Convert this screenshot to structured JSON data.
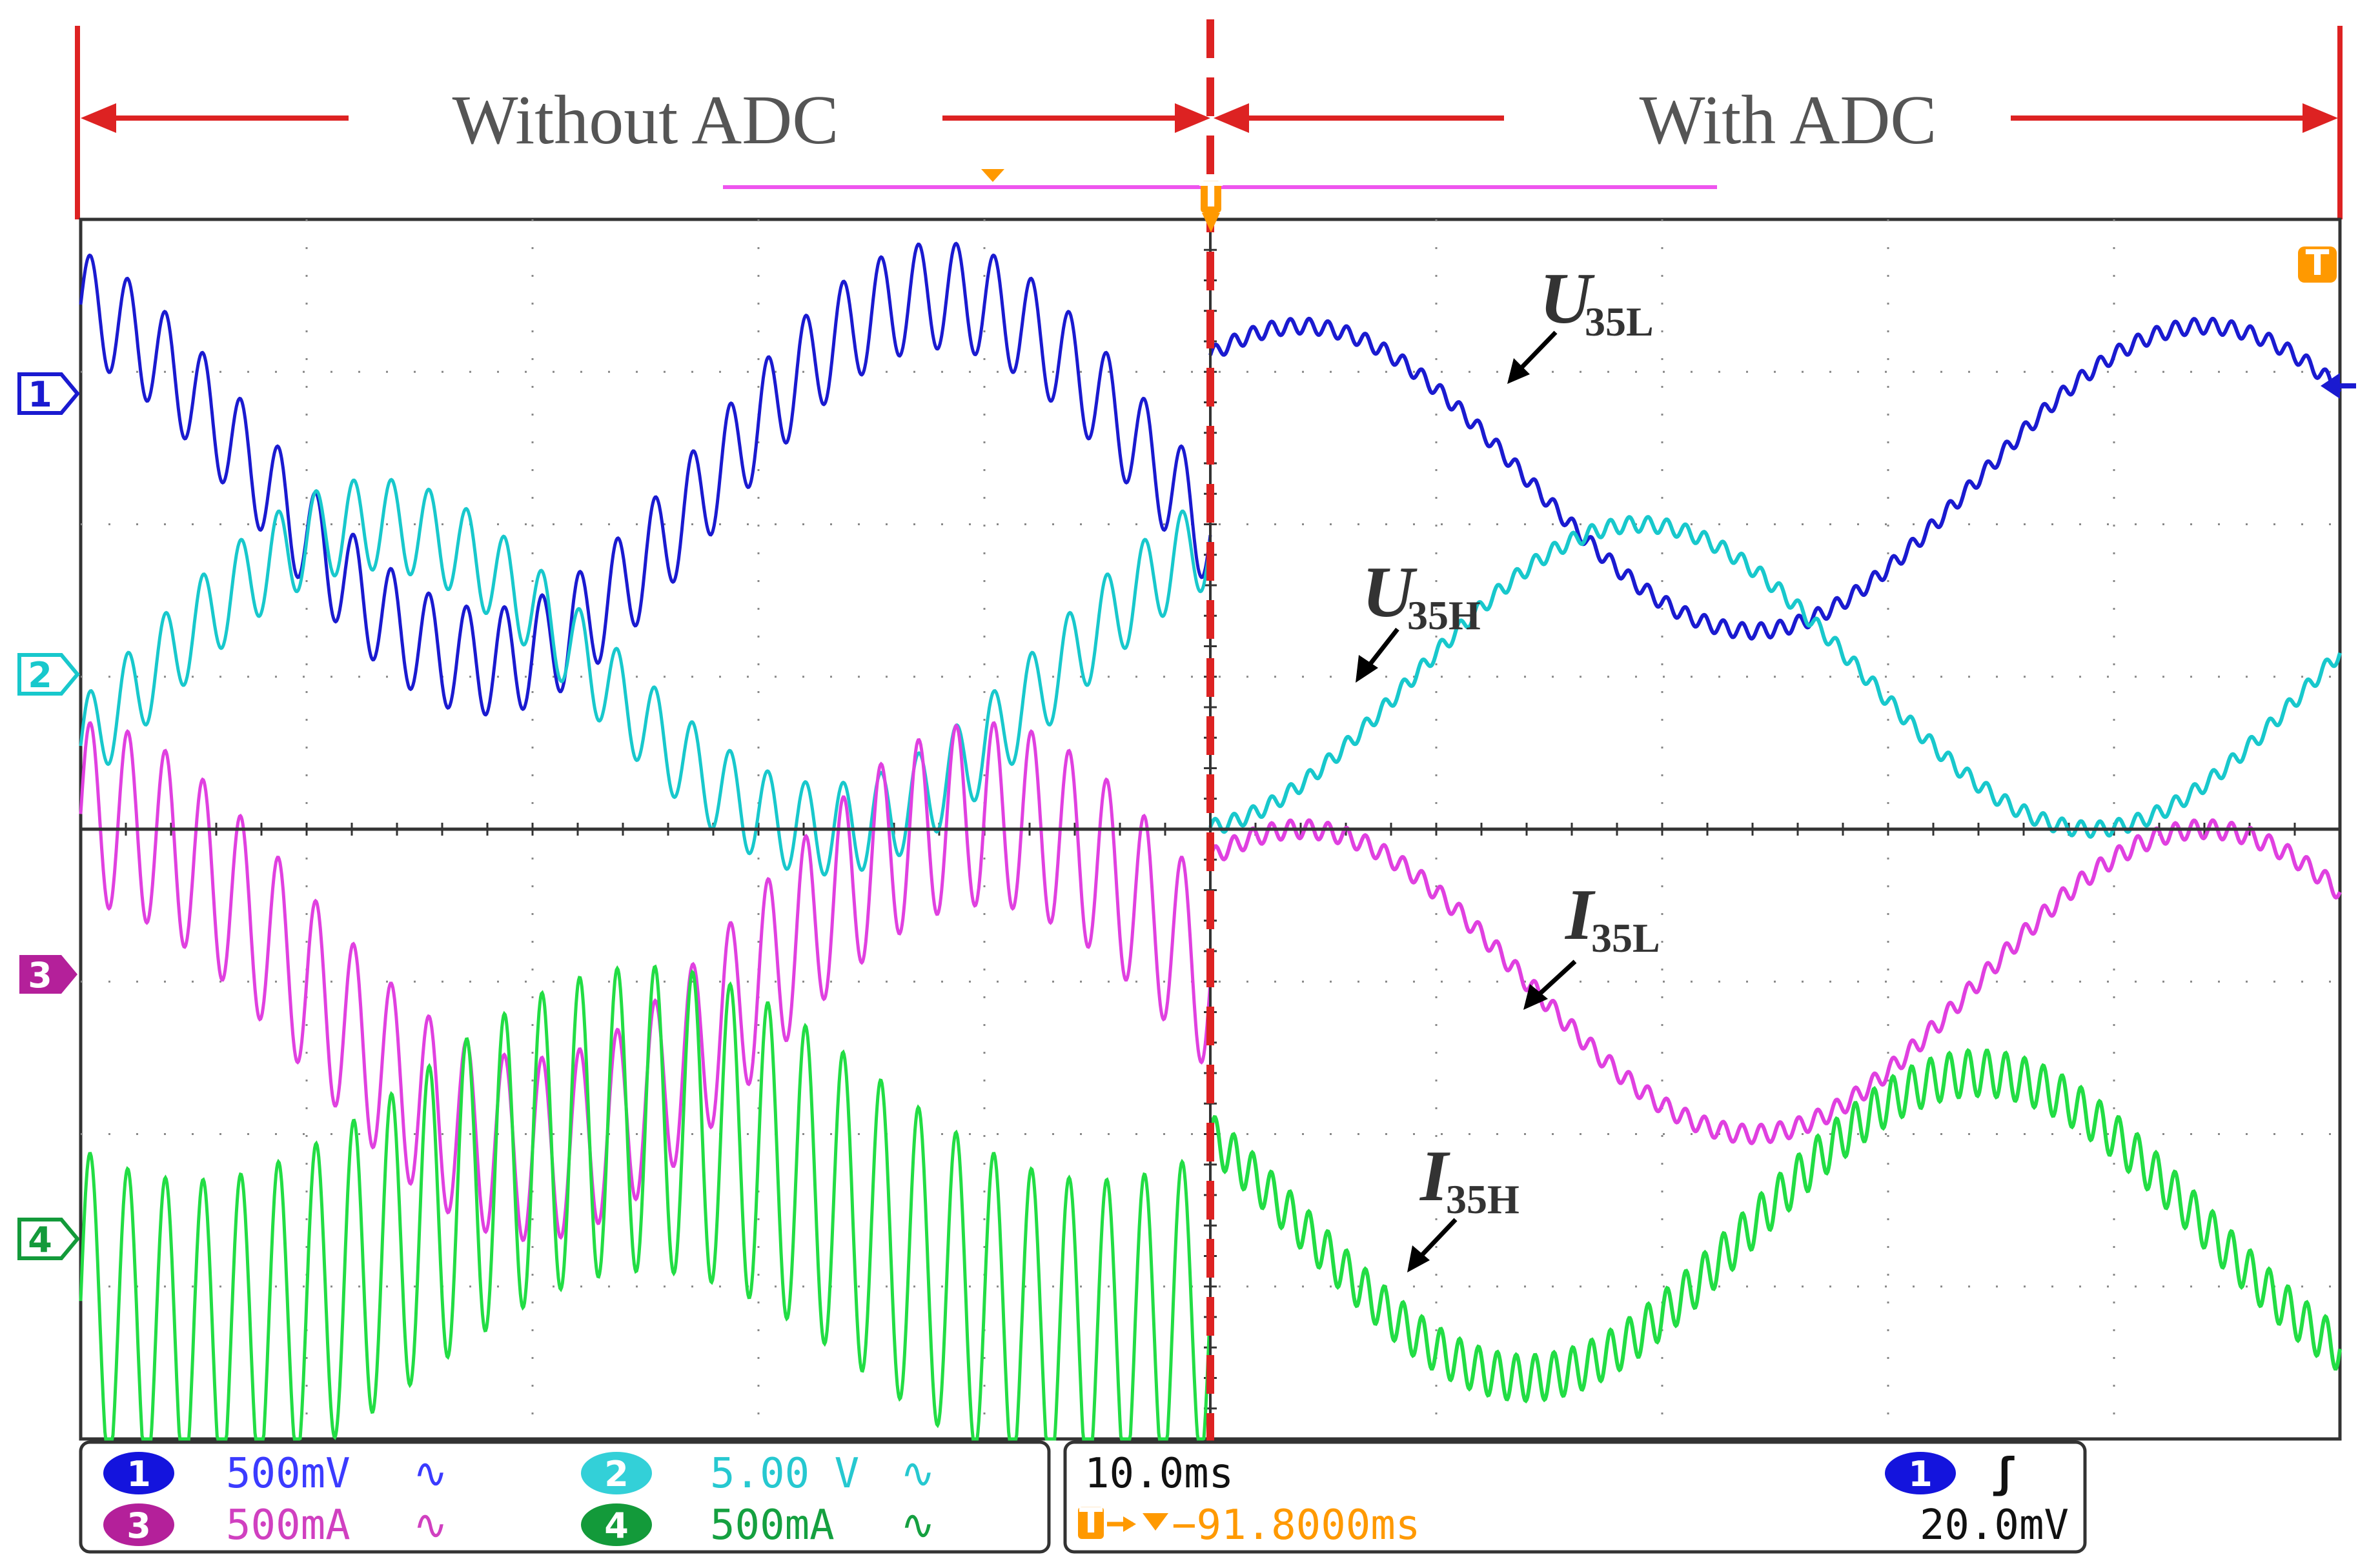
{
  "chart_data": {
    "type": "line",
    "title": "",
    "region_labels": {
      "left": "Without ADC",
      "right": "With ADC"
    },
    "x": {
      "units": "div",
      "range": [
        -5,
        5
      ],
      "divisions": 10,
      "time_per_div": "10.0ms",
      "split_at_div": 0
    },
    "y": {
      "units": "div",
      "range": [
        -4,
        4
      ],
      "divisions": 8
    },
    "grid": true,
    "series": [
      {
        "name": "U35L",
        "label_main": "U",
        "label_sub": "35L",
        "channel": "1",
        "color": "#1a1ad0",
        "scale": "500mV",
        "without_adc": {
          "offset_div": 2.3,
          "amplitude_div": 1.2,
          "ripple_div": 0.35,
          "ripple_cycles_per_div": 6,
          "phase_div": -2.2
        },
        "with_adc": {
          "offset_div": 2.3,
          "amplitude_div": 1.0,
          "ripple_div": 0.05,
          "ripple_cycles_per_div": 12,
          "phase_div": -4.6
        }
      },
      {
        "name": "U35H",
        "label_main": "U",
        "label_sub": "35H",
        "channel": "2",
        "color": "#18c8cc",
        "scale": "5.00 V",
        "without_adc": {
          "offset_div": 1.0,
          "amplitude_div": 1.0,
          "ripple_div": 0.3,
          "ripple_cycles_per_div": 6,
          "phase_div": -0.7
        },
        "with_adc": {
          "offset_div": 1.0,
          "amplitude_div": 1.0,
          "ripple_div": 0.05,
          "ripple_cycles_per_div": 12,
          "phase_div": -3.1
        }
      },
      {
        "name": "I35L",
        "label_main": "I",
        "label_sub": "35L",
        "channel": "3",
        "color": "#e040e0",
        "scale": "500mA",
        "without_adc": {
          "offset_div": -1.0,
          "amplitude_div": 1.1,
          "ripple_div": 0.6,
          "ripple_cycles_per_div": 6,
          "phase_div": -2.0
        },
        "with_adc": {
          "offset_div": -1.0,
          "amplitude_div": 1.0,
          "ripple_div": 0.06,
          "ripple_cycles_per_div": 12,
          "phase_div": -4.6
        }
      },
      {
        "name": "I35H",
        "label_main": "I",
        "label_sub": "35H",
        "channel": "4",
        "color": "#22dd44",
        "scale": "500mA",
        "without_adc": {
          "offset_div": -2.6,
          "amplitude_div": 0.7,
          "ripple_div": 1.0,
          "ripple_cycles_per_div": 6,
          "phase_div": -3.5
        },
        "with_adc": {
          "offset_div": -2.6,
          "amplitude_div": 1.0,
          "ripple_div": 0.15,
          "ripple_cycles_per_div": 12,
          "phase_div": -1.6
        }
      }
    ]
  },
  "status_panel": {
    "channels": [
      {
        "num": "1",
        "scale": "500mV",
        "coupling": "∿",
        "badge_color": "#1414dd",
        "text_color": "#3b3bff"
      },
      {
        "num": "2",
        "scale": "5.00 V",
        "coupling": "∿",
        "badge_color": "#33d0d8",
        "text_color": "#26c8d0"
      },
      {
        "num": "3",
        "scale": "500mA",
        "coupling": "∿",
        "badge_color": "#b4209a",
        "text_color": "#d040c0"
      },
      {
        "num": "4",
        "scale": "500mA",
        "coupling": "∿",
        "badge_color": "#139a3a",
        "text_color": "#15a040"
      }
    ],
    "timebase": "10.0ms",
    "trigger_position": "−91.8000ms",
    "trigger_channel": "1",
    "trigger_slope": "ʃ",
    "trigger_level": "20.0mV"
  },
  "markers": {
    "ch1": "1",
    "ch2": "2",
    "ch3": "3",
    "ch4": "4",
    "trigger": "T"
  },
  "colors": {
    "annotation_red": "#dd2222",
    "grid": "#888888",
    "trigger_orange": "#ff9900",
    "ref_magenta": "#ee55ee"
  }
}
